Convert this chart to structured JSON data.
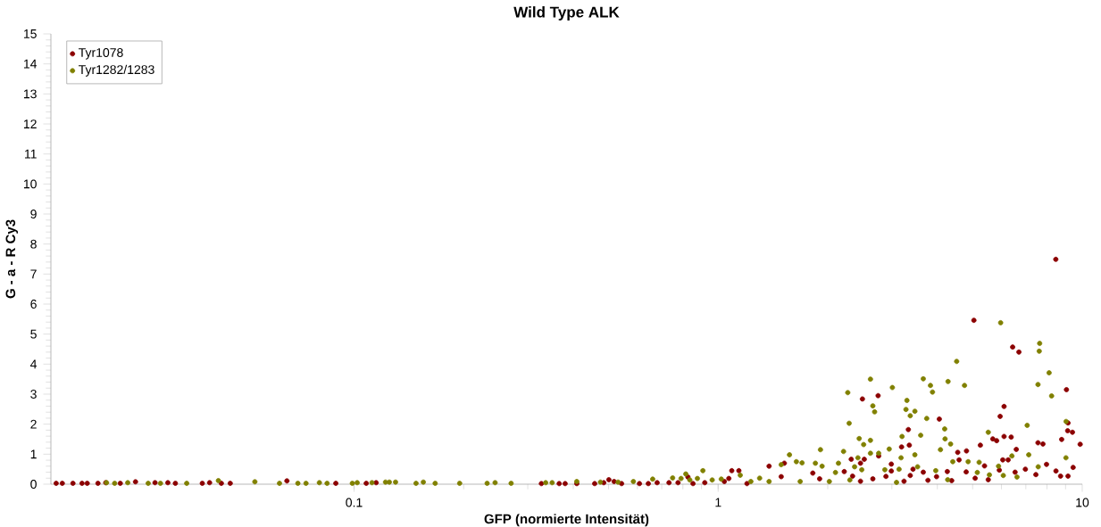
{
  "chart_data": {
    "type": "scatter",
    "title": "Wild Type ALK",
    "xlabel": "GFP (normierte Intensität)",
    "ylabel": "G - a - R Cy3",
    "log": "x",
    "xlim": [
      0.0147,
      10
    ],
    "ylim": [
      0,
      15
    ],
    "xticks": [
      0.1,
      1,
      10
    ],
    "yticks": [
      0,
      1,
      2,
      3,
      4,
      5,
      6,
      7,
      8,
      9,
      10,
      11,
      12,
      13,
      14,
      15
    ],
    "grid": false,
    "legend": "top left",
    "marker": "circle",
    "series": [
      {
        "name": "Tyr1078",
        "color": "#8b0000",
        "x": [
          5.04,
          6.44,
          6.7,
          9.05,
          2.49,
          2.75,
          4.05,
          6.1,
          5.95,
          3.33,
          6.1,
          6.38,
          9.14,
          9.12,
          9.4,
          9.87,
          8.78,
          7.56,
          7.8,
          5.68,
          5.82,
          5.25,
          6.59,
          4.55,
          4.81,
          3.19,
          3.35,
          2.76,
          2.52,
          2.32,
          2.46,
          2.22,
          2.34,
          2.99,
          2.99,
          1.38,
          1.52,
          1.82,
          1.14,
          1.09,
          1.49,
          1.9,
          3.43,
          3.66,
          4.26,
          4.59,
          5.39,
          4.8,
          5.52,
          5.92,
          6.05,
          6.26,
          6.54,
          6.98,
          7.98,
          8.47,
          8.72,
          9.14,
          9.44,
          7.46,
          5.08,
          3.98,
          3.77,
          3.37,
          2.89,
          2.66,
          2.46,
          3.24,
          4.38,
          8.46,
          0.327,
          0.366,
          0.38,
          0.409,
          0.458,
          0.485,
          0.501,
          0.518,
          0.543,
          0.608,
          0.643,
          0.68,
          0.733,
          0.776,
          0.826,
          0.853,
          0.919,
          1.04,
          1.07,
          1.2,
          0.0152,
          0.0158,
          0.0169,
          0.0179,
          0.0185,
          0.0198,
          0.0208,
          0.0228,
          0.0251,
          0.0284,
          0.0308,
          0.0323,
          0.0383,
          0.0401,
          0.0432,
          0.0457,
          0.0654,
          0.0891,
          0.108,
          0.115
        ],
        "values": [
          5.46,
          4.57,
          4.4,
          3.15,
          2.84,
          2.95,
          2.17,
          2.59,
          2.26,
          1.82,
          1.59,
          1.57,
          2.04,
          1.78,
          1.73,
          1.33,
          1.49,
          1.38,
          1.34,
          1.51,
          1.45,
          1.3,
          1.16,
          1.06,
          1.11,
          1.24,
          1.3,
          0.94,
          0.83,
          0.83,
          0.7,
          0.42,
          0.27,
          0.67,
          0.44,
          0.6,
          0.7,
          0.37,
          0.45,
          0.45,
          0.25,
          0.18,
          0.5,
          0.4,
          0.42,
          0.81,
          0.61,
          0.41,
          0.15,
          0.47,
          0.81,
          0.81,
          0.4,
          0.5,
          0.66,
          0.44,
          0.27,
          0.27,
          0.56,
          0.32,
          0.2,
          0.25,
          0.13,
          0.29,
          0.26,
          0.18,
          0.1,
          0.1,
          0.12,
          7.49,
          0.02,
          0.02,
          0.02,
          0.02,
          0.02,
          0.05,
          0.15,
          0.09,
          0.02,
          0.02,
          0.02,
          0.05,
          0.05,
          0.05,
          0.24,
          0.02,
          0.05,
          0.09,
          0.19,
          0.02,
          0.03,
          0.03,
          0.03,
          0.03,
          0.03,
          0.03,
          0.05,
          0.03,
          0.08,
          0.05,
          0.05,
          0.03,
          0.03,
          0.05,
          0.03,
          0.03,
          0.11,
          0.03,
          0.03,
          0.05
        ]
      },
      {
        "name": "Tyr1282/1283",
        "color": "#808000",
        "x": [
          5.97,
          7.64,
          7.62,
          4.52,
          8.11,
          2.62,
          3.66,
          4.28,
          4.75,
          3.01,
          3.83,
          7.56,
          2.27,
          3.88,
          8.24,
          2.66,
          2.69,
          3.3,
          3.28,
          3.37,
          3.47,
          2.29,
          3.74,
          3.6,
          3.2,
          5.52,
          4.19,
          4.2,
          7.06,
          9.03,
          2.44,
          2.62,
          2.51,
          2.21,
          2.95,
          2.62,
          2.76,
          3.18,
          3.47,
          4.08,
          4.35,
          1.91,
          1.57,
          1.7,
          1.49,
          1.64,
          1.85,
          1.93,
          2.14,
          2.42,
          4.41,
          4.86,
          5.21,
          5.15,
          5.56,
          5.89,
          6.41,
          7.13,
          7.57,
          9.02,
          6.07,
          6.62,
          3.96,
          3.53,
          3.14,
          2.87,
          2.48,
          2.37,
          2.1,
          2.02,
          2.3,
          3.09,
          4.27,
          1.15,
          1.3,
          1.38,
          1.68,
          1.23,
          0.13,
          0.148,
          0.155,
          0.167,
          0.195,
          0.232,
          0.244,
          0.27,
          0.336,
          0.35,
          0.409,
          0.475,
          0.531,
          0.585,
          0.661,
          0.75,
          0.791,
          0.815,
          0.836,
          0.877,
          0.908,
          0.963,
          1.02,
          0.0209,
          0.022,
          0.0239,
          0.0272,
          0.0294,
          0.0347,
          0.0424,
          0.0534,
          0.0624,
          0.0701,
          0.0738,
          0.0803,
          0.0843,
          0.0989,
          0.102,
          0.112,
          0.122,
          0.125
        ],
        "values": [
          5.38,
          4.69,
          4.43,
          4.09,
          3.71,
          3.5,
          3.51,
          3.42,
          3.29,
          3.22,
          3.29,
          3.32,
          3.05,
          3.07,
          2.94,
          2.61,
          2.41,
          2.79,
          2.49,
          2.28,
          2.43,
          2.03,
          2.19,
          1.63,
          1.59,
          1.73,
          1.84,
          1.51,
          1.96,
          2.09,
          1.52,
          1.46,
          1.32,
          1.09,
          1.17,
          1.03,
          1.03,
          0.88,
          0.98,
          1.15,
          1.34,
          1.15,
          0.98,
          0.71,
          0.65,
          0.75,
          0.7,
          0.6,
          0.7,
          0.88,
          0.75,
          0.75,
          0.73,
          0.39,
          0.31,
          0.6,
          0.94,
          0.98,
          0.58,
          0.88,
          0.29,
          0.24,
          0.45,
          0.58,
          0.5,
          0.48,
          0.48,
          0.58,
          0.39,
          0.09,
          0.14,
          0.06,
          0.15,
          0.3,
          0.2,
          0.09,
          0.09,
          0.09,
          0.07,
          0.03,
          0.07,
          0.03,
          0.03,
          0.03,
          0.05,
          0.03,
          0.05,
          0.05,
          0.09,
          0.07,
          0.07,
          0.09,
          0.17,
          0.21,
          0.19,
          0.34,
          0.14,
          0.19,
          0.45,
          0.14,
          0.17,
          0.05,
          0.03,
          0.05,
          0.03,
          0.03,
          0.03,
          0.12,
          0.08,
          0.03,
          0.03,
          0.03,
          0.05,
          0.03,
          0.03,
          0.05,
          0.05,
          0.07,
          0.07
        ]
      }
    ]
  }
}
